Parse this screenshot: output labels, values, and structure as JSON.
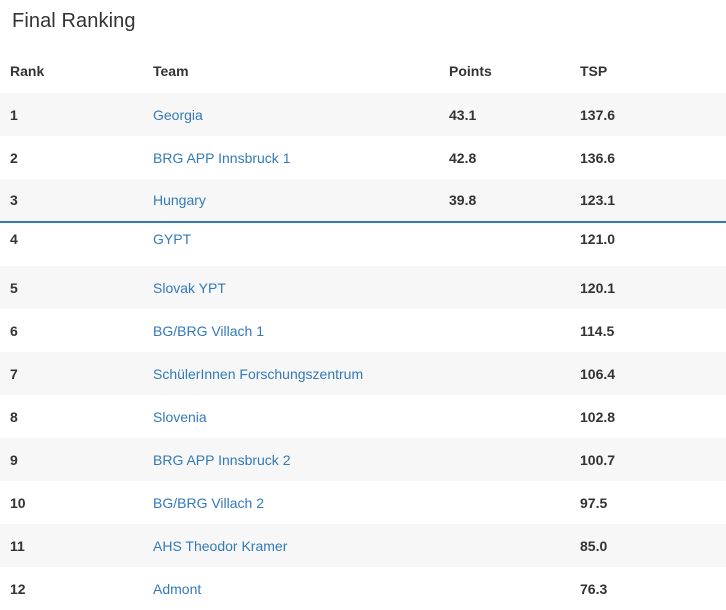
{
  "page": {
    "title": "Final Ranking"
  },
  "table": {
    "headers": {
      "rank": "Rank",
      "team": "Team",
      "points": "Points",
      "tsp": "TSP"
    },
    "rows": [
      {
        "rank": "1",
        "team": "Georgia",
        "points": "43.1",
        "tsp": "137.6"
      },
      {
        "rank": "2",
        "team": "BRG APP Innsbruck 1",
        "points": "42.8",
        "tsp": "136.6"
      },
      {
        "rank": "3",
        "team": "Hungary",
        "points": "39.8",
        "tsp": "123.1"
      },
      {
        "rank": "4",
        "team": "GYPT",
        "points": "",
        "tsp": "121.0"
      },
      {
        "rank": "5",
        "team": "Slovak YPT",
        "points": "",
        "tsp": "120.1"
      },
      {
        "rank": "6",
        "team": "BG/BRG Villach 1",
        "points": "",
        "tsp": "114.5"
      },
      {
        "rank": "7",
        "team": "SchülerInnen Forschungszentrum",
        "points": "",
        "tsp": "106.4"
      },
      {
        "rank": "8",
        "team": "Slovenia",
        "points": "",
        "tsp": "102.8"
      },
      {
        "rank": "9",
        "team": "BRG APP Innsbruck 2",
        "points": "",
        "tsp": "100.7"
      },
      {
        "rank": "10",
        "team": "BG/BRG Villach 2",
        "points": "",
        "tsp": "97.5"
      },
      {
        "rank": "11",
        "team": "AHS Theodor Kramer",
        "points": "",
        "tsp": "85.0"
      },
      {
        "rank": "12",
        "team": "Admont",
        "points": "",
        "tsp": "76.3"
      }
    ]
  },
  "colors": {
    "link": "#337ab7",
    "stripe": "#f7f7f7",
    "divider": "#337ab7"
  }
}
